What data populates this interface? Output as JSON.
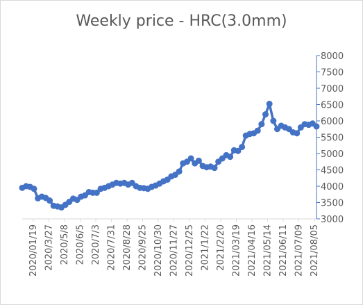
{
  "chart_data": {
    "type": "line",
    "title": "Weekly price - HRC(3.0mm)",
    "xlabel": "",
    "ylabel": "",
    "ylim": [
      3000,
      8000
    ],
    "yticks": [
      3000,
      3500,
      4000,
      4500,
      5000,
      5500,
      6000,
      6500,
      7000,
      7500,
      8000
    ],
    "y_axis_side": "right",
    "grid": false,
    "x_tick_labels": [
      "2020/01/19",
      "2020/3/27",
      "2020/5/8",
      "2020/6/5",
      "2020/7/3",
      "2020/7/31",
      "2020/8/28",
      "2020/9/25",
      "2020/10/30",
      "2020/11/27",
      "2020/12/25",
      "2021/1/22",
      "2021/2/20",
      "2021/03/19",
      "2021/04/16",
      "2021/05/14",
      "2021/06/11",
      "2021/07/09",
      "2021/08/05"
    ],
    "color": "#4472C4",
    "series": [
      {
        "name": "",
        "values": [
          3950,
          4000,
          3980,
          3920,
          3630,
          3680,
          3640,
          3560,
          3400,
          3380,
          3350,
          3430,
          3520,
          3620,
          3580,
          3680,
          3720,
          3820,
          3800,
          3800,
          3920,
          3950,
          4000,
          4050,
          4100,
          4080,
          4100,
          4050,
          4100,
          4000,
          3950,
          3940,
          3920,
          3980,
          4020,
          4080,
          4150,
          4200,
          4300,
          4350,
          4450,
          4700,
          4750,
          4850,
          4700,
          4780,
          4620,
          4580,
          4600,
          4560,
          4750,
          4850,
          4950,
          4900,
          5100,
          5080,
          5200,
          5550,
          5600,
          5620,
          5700,
          5900,
          6200,
          6520,
          6000,
          5750,
          5850,
          5800,
          5750,
          5650,
          5620,
          5800,
          5900,
          5880,
          5920,
          5830
        ]
      }
    ]
  }
}
